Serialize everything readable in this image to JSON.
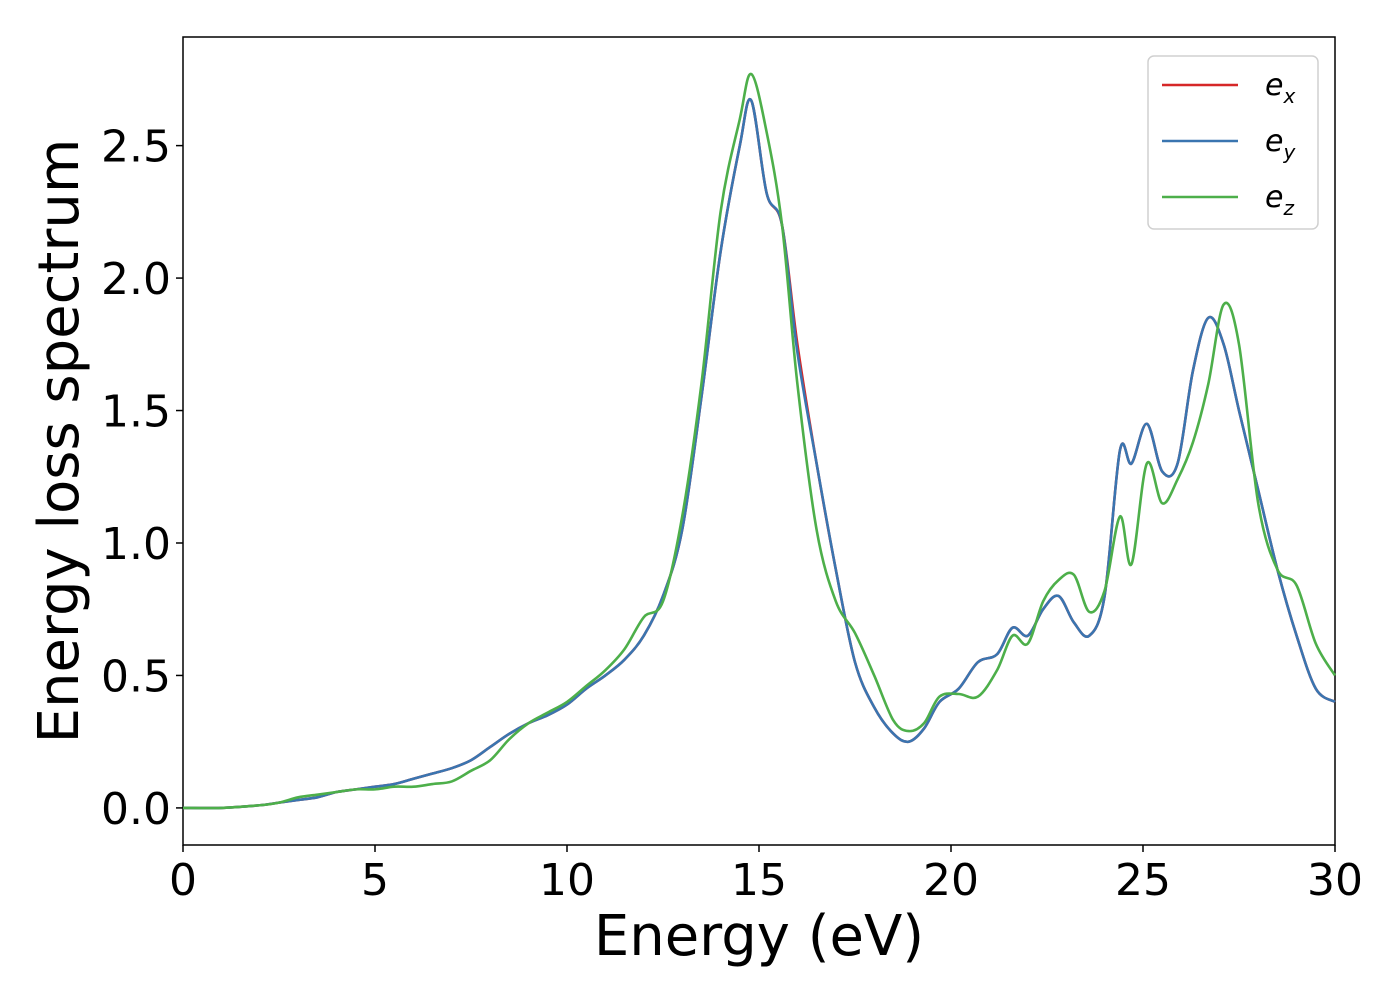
{
  "chart_data": {
    "type": "line",
    "title": "",
    "xlabel": "Energy (eV)",
    "ylabel": "Energy loss spectrum",
    "xlim": [
      0,
      30
    ],
    "ylim": [
      -0.14,
      2.91
    ],
    "xticks": [
      0,
      5,
      10,
      15,
      20,
      25,
      30
    ],
    "xtick_labels": [
      "0",
      "5",
      "10",
      "15",
      "20",
      "25",
      "30"
    ],
    "yticks": [
      0.0,
      0.5,
      1.0,
      1.5,
      2.0,
      2.5
    ],
    "ytick_labels": [
      "0.0",
      "0.5",
      "1.0",
      "1.5",
      "2.0",
      "2.5"
    ],
    "grid": false,
    "legend_position": "top-right",
    "series": [
      {
        "name": "e_x",
        "label_base": "e",
        "label_sub": "x",
        "color": "#d62728",
        "x": [
          0,
          1,
          2,
          2.5,
          3,
          3.5,
          4,
          4.5,
          5,
          5.5,
          6,
          6.5,
          7,
          7.5,
          8,
          8.5,
          9,
          9.5,
          10,
          10.5,
          11,
          11.5,
          12,
          12.5,
          13,
          13.5,
          14,
          14.5,
          14.8,
          15.2,
          15.6,
          16,
          16.5,
          17,
          17.5,
          18,
          18.5,
          18.9,
          19.3,
          19.7,
          20.2,
          20.7,
          21.2,
          21.6,
          22,
          22.4,
          22.8,
          23.2,
          23.6,
          24,
          24.4,
          24.7,
          25.1,
          25.5,
          25.9,
          26.3,
          26.7,
          27.1,
          27.5,
          28,
          28.5,
          29,
          29.5,
          30
        ],
        "y": [
          0,
          0,
          0.01,
          0.02,
          0.03,
          0.04,
          0.06,
          0.07,
          0.08,
          0.09,
          0.11,
          0.13,
          0.15,
          0.18,
          0.23,
          0.28,
          0.32,
          0.35,
          0.39,
          0.45,
          0.5,
          0.56,
          0.65,
          0.8,
          1.05,
          1.55,
          2.1,
          2.5,
          2.67,
          2.32,
          2.2,
          1.75,
          1.3,
          0.9,
          0.55,
          0.38,
          0.28,
          0.25,
          0.3,
          0.4,
          0.45,
          0.55,
          0.58,
          0.68,
          0.65,
          0.75,
          0.8,
          0.7,
          0.65,
          0.8,
          1.35,
          1.3,
          1.45,
          1.27,
          1.3,
          1.65,
          1.85,
          1.75,
          1.5,
          1.2,
          0.9,
          0.65,
          0.45,
          0.4
        ]
      },
      {
        "name": "e_y",
        "label_base": "e",
        "label_sub": "y",
        "color": "#3a75b0",
        "x": [
          0,
          1,
          2,
          2.5,
          3,
          3.5,
          4,
          4.5,
          5,
          5.5,
          6,
          6.5,
          7,
          7.5,
          8,
          8.5,
          9,
          9.5,
          10,
          10.5,
          11,
          11.5,
          12,
          12.5,
          13,
          13.5,
          14,
          14.5,
          14.8,
          15.2,
          15.6,
          16,
          16.5,
          17,
          17.5,
          18,
          18.5,
          18.9,
          19.3,
          19.7,
          20.2,
          20.7,
          21.2,
          21.6,
          22,
          22.4,
          22.8,
          23.2,
          23.6,
          24,
          24.4,
          24.7,
          25.1,
          25.5,
          25.9,
          26.3,
          26.7,
          27.1,
          27.5,
          28,
          28.5,
          29,
          29.5,
          30
        ],
        "y": [
          0,
          0,
          0.01,
          0.02,
          0.03,
          0.04,
          0.06,
          0.07,
          0.08,
          0.09,
          0.11,
          0.13,
          0.15,
          0.18,
          0.23,
          0.28,
          0.32,
          0.35,
          0.39,
          0.45,
          0.5,
          0.56,
          0.65,
          0.8,
          1.05,
          1.55,
          2.1,
          2.5,
          2.67,
          2.32,
          2.2,
          1.72,
          1.3,
          0.9,
          0.55,
          0.38,
          0.28,
          0.25,
          0.3,
          0.4,
          0.45,
          0.55,
          0.58,
          0.68,
          0.65,
          0.75,
          0.8,
          0.7,
          0.65,
          0.8,
          1.35,
          1.3,
          1.45,
          1.27,
          1.3,
          1.65,
          1.85,
          1.75,
          1.5,
          1.2,
          0.9,
          0.65,
          0.45,
          0.4
        ]
      },
      {
        "name": "e_z",
        "label_base": "e",
        "label_sub": "z",
        "color": "#4daf4a",
        "x": [
          0,
          1,
          2,
          2.5,
          3,
          3.5,
          4,
          4.5,
          5,
          5.5,
          6,
          6.5,
          7,
          7.5,
          8,
          8.5,
          9,
          9.5,
          10,
          10.5,
          11,
          11.5,
          12,
          12.5,
          13,
          13.5,
          14,
          14.5,
          14.8,
          15.2,
          15.6,
          16,
          16.5,
          17,
          17.5,
          18,
          18.5,
          18.9,
          19.3,
          19.7,
          20.2,
          20.7,
          21.2,
          21.6,
          22,
          22.4,
          22.8,
          23.2,
          23.6,
          24,
          24.4,
          24.7,
          25.1,
          25.5,
          25.9,
          26.3,
          26.7,
          27.1,
          27.5,
          28,
          28.5,
          29,
          29.5,
          30
        ],
        "y": [
          0,
          0,
          0.01,
          0.02,
          0.04,
          0.05,
          0.06,
          0.07,
          0.07,
          0.08,
          0.08,
          0.09,
          0.1,
          0.14,
          0.18,
          0.26,
          0.32,
          0.36,
          0.4,
          0.46,
          0.52,
          0.6,
          0.72,
          0.78,
          1.1,
          1.6,
          2.25,
          2.6,
          2.77,
          2.55,
          2.2,
          1.6,
          1.05,
          0.78,
          0.66,
          0.5,
          0.33,
          0.29,
          0.32,
          0.42,
          0.43,
          0.42,
          0.52,
          0.65,
          0.62,
          0.78,
          0.86,
          0.88,
          0.74,
          0.82,
          1.1,
          0.92,
          1.3,
          1.15,
          1.24,
          1.38,
          1.6,
          1.9,
          1.75,
          1.15,
          0.9,
          0.84,
          0.62,
          0.5
        ]
      }
    ]
  }
}
